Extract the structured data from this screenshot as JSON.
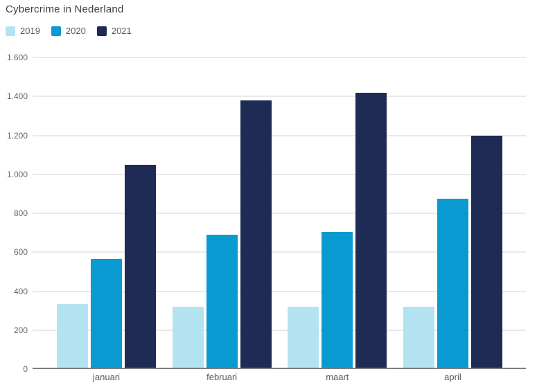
{
  "title": "Cybercrime in Nederland",
  "chart_data": {
    "type": "bar",
    "title": "Cybercrime in Nederland",
    "categories": [
      "januari",
      "februari",
      "maart",
      "april"
    ],
    "series": [
      {
        "name": "2019",
        "color": "#b3e3f1",
        "values": [
          335,
          320,
          320,
          320
        ]
      },
      {
        "name": "2020",
        "color": "#0a9ad2",
        "values": [
          565,
          690,
          705,
          875
        ]
      },
      {
        "name": "2021",
        "color": "#1e2b55",
        "values": [
          1050,
          1380,
          1420,
          1200
        ]
      }
    ],
    "xlabel": "",
    "ylabel": "",
    "ylim": [
      0,
      1600
    ],
    "ytick_step": 200,
    "ytick_labels": [
      "0",
      "200",
      "400",
      "600",
      "800",
      "1.000",
      "1.200",
      "1.400",
      "1.600"
    ],
    "grid": true,
    "legend_position": "top-left",
    "grid_color": "#e9e9e9",
    "baseline_color": "#7d7d7d",
    "tick_text_color": "#666666",
    "title_text_color": "#3d3d3d"
  }
}
